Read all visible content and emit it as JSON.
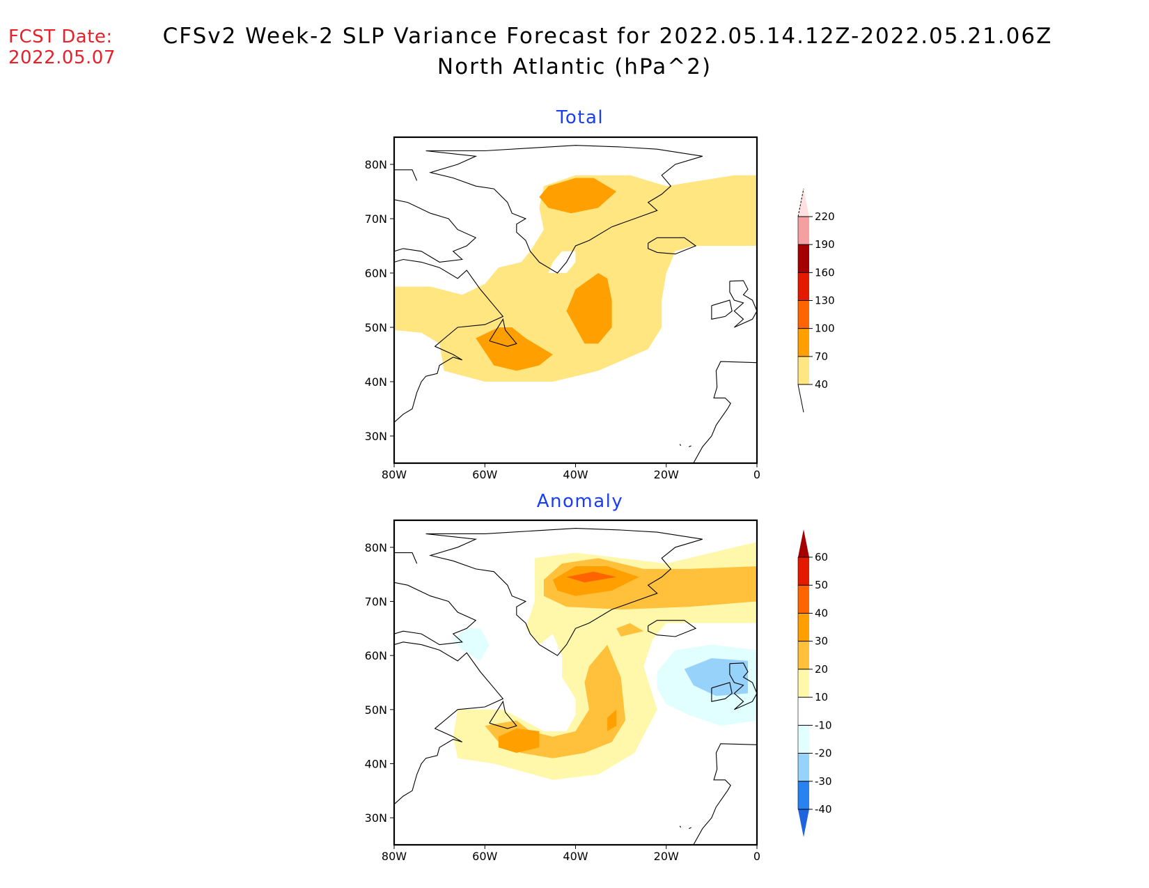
{
  "header": {
    "fcst_label": "FCST Date:",
    "fcst_date": "2022.05.07",
    "title_line1": "CFSv2 Week-2 SLP Variance Forecast for 2022.05.14.12Z-2022.05.21.06Z",
    "title_line2": "North Atlantic (hPa^2)"
  },
  "colors": {
    "fcst": "#e8202a",
    "panel_title": "#1a3ef0"
  },
  "axes": {
    "lat_ticks": [
      "80N",
      "70N",
      "60N",
      "50N",
      "40N",
      "30N"
    ],
    "lon_ticks": [
      "80W",
      "60W",
      "40W",
      "20W",
      "0"
    ],
    "lat_range": [
      25,
      85
    ],
    "lon_range": [
      -80,
      0
    ]
  },
  "chart_data": [
    {
      "type": "heatmap",
      "title": "Total",
      "units": "hPa^2",
      "colorbar": {
        "levels": [
          40,
          70,
          100,
          130,
          160,
          190,
          220
        ],
        "labels": [
          "40",
          "70",
          "100",
          "130",
          "160",
          "190",
          "220"
        ],
        "colors": [
          "#ffe680",
          "#ffa000",
          "#ff6400",
          "#e41a00",
          "#a50000",
          "#f4a0a0",
          "#ffe0e0"
        ],
        "extend": "both"
      },
      "regions": [
        {
          "level": "40-70",
          "description": "broad band from Labrador/Newfoundland across southern Greenland to Denmark Strait and east to 0E at 65-78N"
        },
        {
          "level": "70-100",
          "description": "center near 74N 35W (Greenland Sea/east Greenland)"
        },
        {
          "level": "70-100",
          "description": "center near 55N 33W (central North Atlantic)"
        },
        {
          "level": "70-100",
          "description": "center near 45N 55W (south of Newfoundland)"
        }
      ]
    },
    {
      "type": "heatmap",
      "title": "Anomaly",
      "units": "hPa^2",
      "colorbar": {
        "levels": [
          -40,
          -30,
          -20,
          -10,
          10,
          20,
          30,
          40,
          50,
          60
        ],
        "labels": [
          "-40",
          "-30",
          "-20",
          "-10",
          "10",
          "20",
          "30",
          "40",
          "50",
          "60"
        ],
        "colors": [
          "#1e64dc",
          "#2882f0",
          "#96d2fa",
          "#e1ffff",
          "#ffffff",
          "#fff8aa",
          "#ffc03c",
          "#ffa000",
          "#ff6400",
          "#e41a00",
          "#a50000"
        ],
        "extend": "both"
      },
      "regions": [
        {
          "level": "40-50",
          "description": "max near 75N 35W"
        },
        {
          "level": "20-40",
          "description": "band 72-76N from 45W to 0E"
        },
        {
          "level": "20-30",
          "description": "S-shaped band from 48N 65W through 43N 50W up to 58N 35W"
        },
        {
          "level": "30-40",
          "description": "centers near 44N 55W and 48N 32W"
        },
        {
          "level": "-20 to -30",
          "description": "center near 56N 15W (west of Ireland)"
        },
        {
          "level": "-10 to -20",
          "description": "region 48-62N, 25W-0 and small patch near 63N 62W"
        }
      ]
    }
  ]
}
